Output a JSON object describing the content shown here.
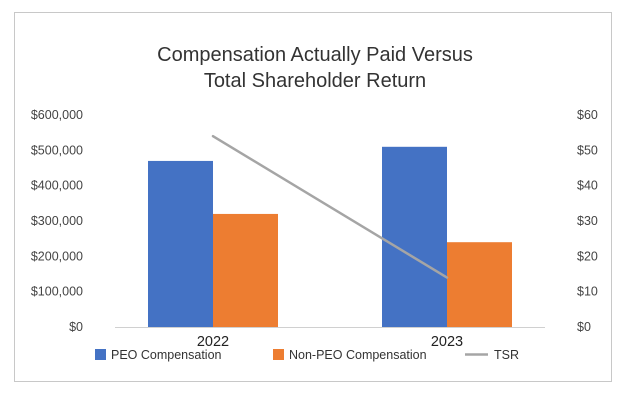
{
  "chart_data": {
    "type": "bar",
    "title_lines": [
      "Compensation Actually Paid Versus",
      "Total Shareholder Return"
    ],
    "categories": [
      "2022",
      "2023"
    ],
    "series": [
      {
        "name": "PEO Compensation",
        "type": "bar",
        "axis": "left",
        "color": "#4472C4",
        "values": [
          470000,
          510000
        ]
      },
      {
        "name": "Non-PEO Compensation",
        "type": "bar",
        "axis": "left",
        "color": "#ED7D31",
        "values": [
          320000,
          240000
        ]
      },
      {
        "name": "TSR",
        "type": "line",
        "axis": "right",
        "color": "#A5A5A5",
        "values": [
          54,
          14
        ]
      }
    ],
    "left_axis": {
      "ylim": [
        0,
        600000
      ],
      "tick_labels": [
        "$0",
        "$100,000",
        "$200,000",
        "$300,000",
        "$400,000",
        "$500,000",
        "$600,000"
      ]
    },
    "right_axis": {
      "ylim": [
        0,
        60
      ],
      "tick_labels": [
        "$0",
        "$10",
        "$20",
        "$30",
        "$40",
        "$50",
        "$60"
      ]
    },
    "grid": false,
    "legend_placement": "bottom"
  }
}
